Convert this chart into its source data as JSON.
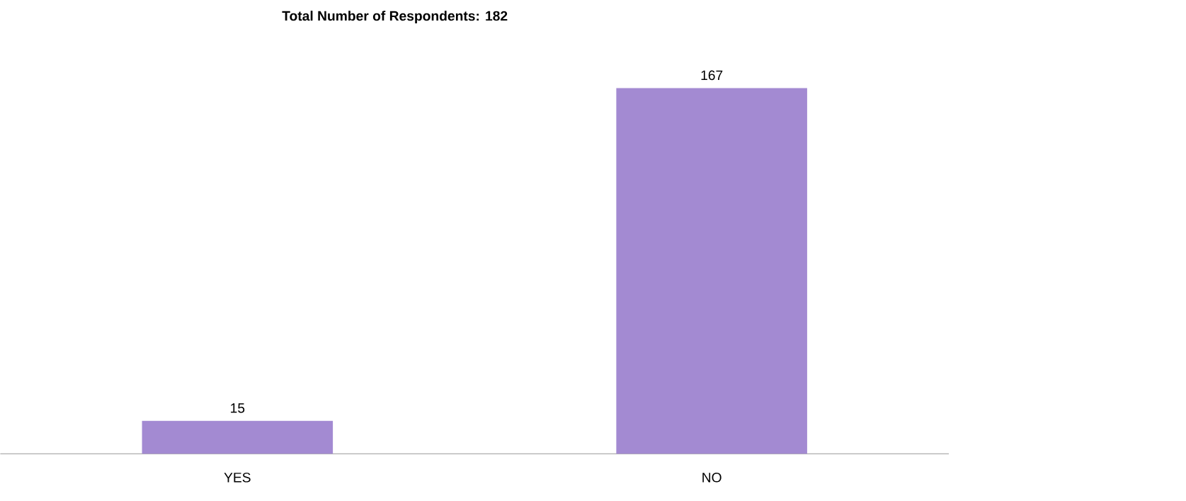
{
  "chart_data": {
    "type": "bar",
    "title": "Total Number of Respondents: 182",
    "categories": [
      "YES",
      "NO"
    ],
    "values": [
      15,
      167
    ],
    "color": "#a38ad2",
    "data_labels": true
  }
}
